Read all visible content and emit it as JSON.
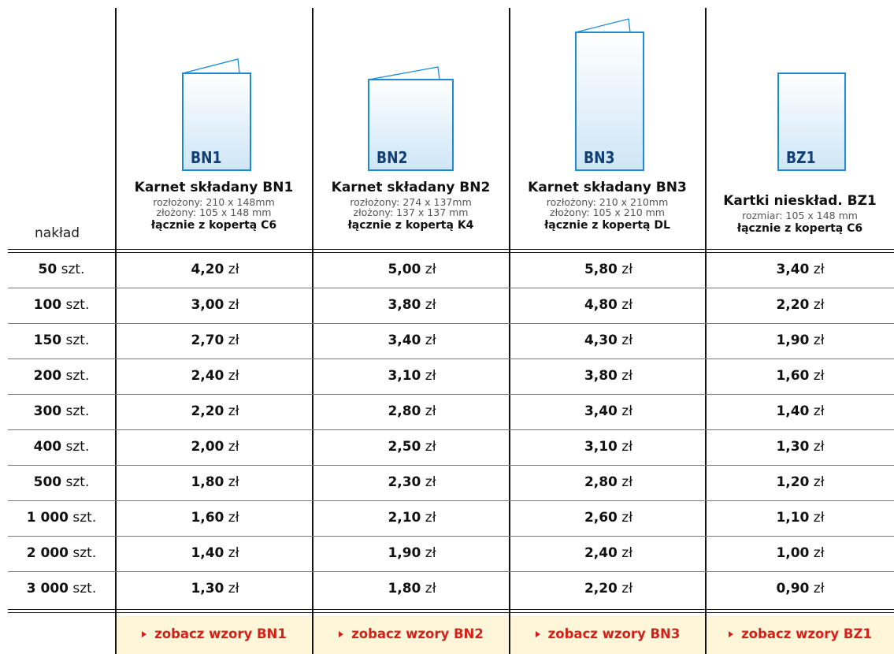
{
  "header": {
    "qty_label": "nakład"
  },
  "products": [
    {
      "code": "BN1",
      "title": "Karnet składany BN1",
      "sub1": "rozłożony: 210 x 148mm",
      "sub2": "złożony: 105 x 148 mm",
      "envelope": "łącznie z kopertą C6",
      "link": "zobacz wzory BN1"
    },
    {
      "code": "BN2",
      "title": "Karnet składany BN2",
      "sub1": "rozłożony: 274 x 137mm",
      "sub2": "złożony: 137 x 137 mm",
      "envelope": "łącznie z kopertą K4",
      "link": "zobacz wzory BN2"
    },
    {
      "code": "BN3",
      "title": "Karnet składany BN3",
      "sub1": "rozłożony: 210 x 210mm",
      "sub2": "złożony: 105 x 210 mm",
      "envelope": "łącznie z kopertą DL",
      "link": "zobacz wzory BN3"
    },
    {
      "code": "BZ1",
      "title": "Kartki nieskład. BZ1",
      "sub1": "rozmiar: 105 x 148 mm",
      "sub2": "",
      "envelope": "łącznie z kopertą C6",
      "link": "zobacz wzory BZ1"
    }
  ],
  "unit": "szt.",
  "currency": "zł",
  "rows": [
    {
      "qty": "50",
      "prices": [
        "4,20",
        "5,00",
        "5,80",
        "3,40"
      ]
    },
    {
      "qty": "100",
      "prices": [
        "3,00",
        "3,80",
        "4,80",
        "2,20"
      ]
    },
    {
      "qty": "150",
      "prices": [
        "2,70",
        "3,40",
        "4,30",
        "1,90"
      ]
    },
    {
      "qty": "200",
      "prices": [
        "2,40",
        "3,10",
        "3,80",
        "1,60"
      ]
    },
    {
      "qty": "300",
      "prices": [
        "2,20",
        "2,80",
        "3,40",
        "1,40"
      ]
    },
    {
      "qty": "400",
      "prices": [
        "2,00",
        "2,50",
        "3,10",
        "1,30"
      ]
    },
    {
      "qty": "500",
      "prices": [
        "1,80",
        "2,30",
        "2,80",
        "1,20"
      ]
    },
    {
      "qty": "1 000",
      "prices": [
        "1,60",
        "2,10",
        "2,60",
        "1,10"
      ]
    },
    {
      "qty": "2 000",
      "prices": [
        "1,40",
        "1,90",
        "2,40",
        "1,00"
      ]
    },
    {
      "qty": "3 000",
      "prices": [
        "1,30",
        "1,80",
        "2,20",
        "0,90"
      ]
    }
  ],
  "colors": {
    "card_border": "#1b8bd4",
    "card_code": "#123f73",
    "link": "#d4201b",
    "footer_bg": "#fdf6d8"
  },
  "icons": [
    "folded-card-icon",
    "folded-card-icon",
    "folded-card-icon",
    "flat-card-icon",
    "triangle-right-icon"
  ]
}
